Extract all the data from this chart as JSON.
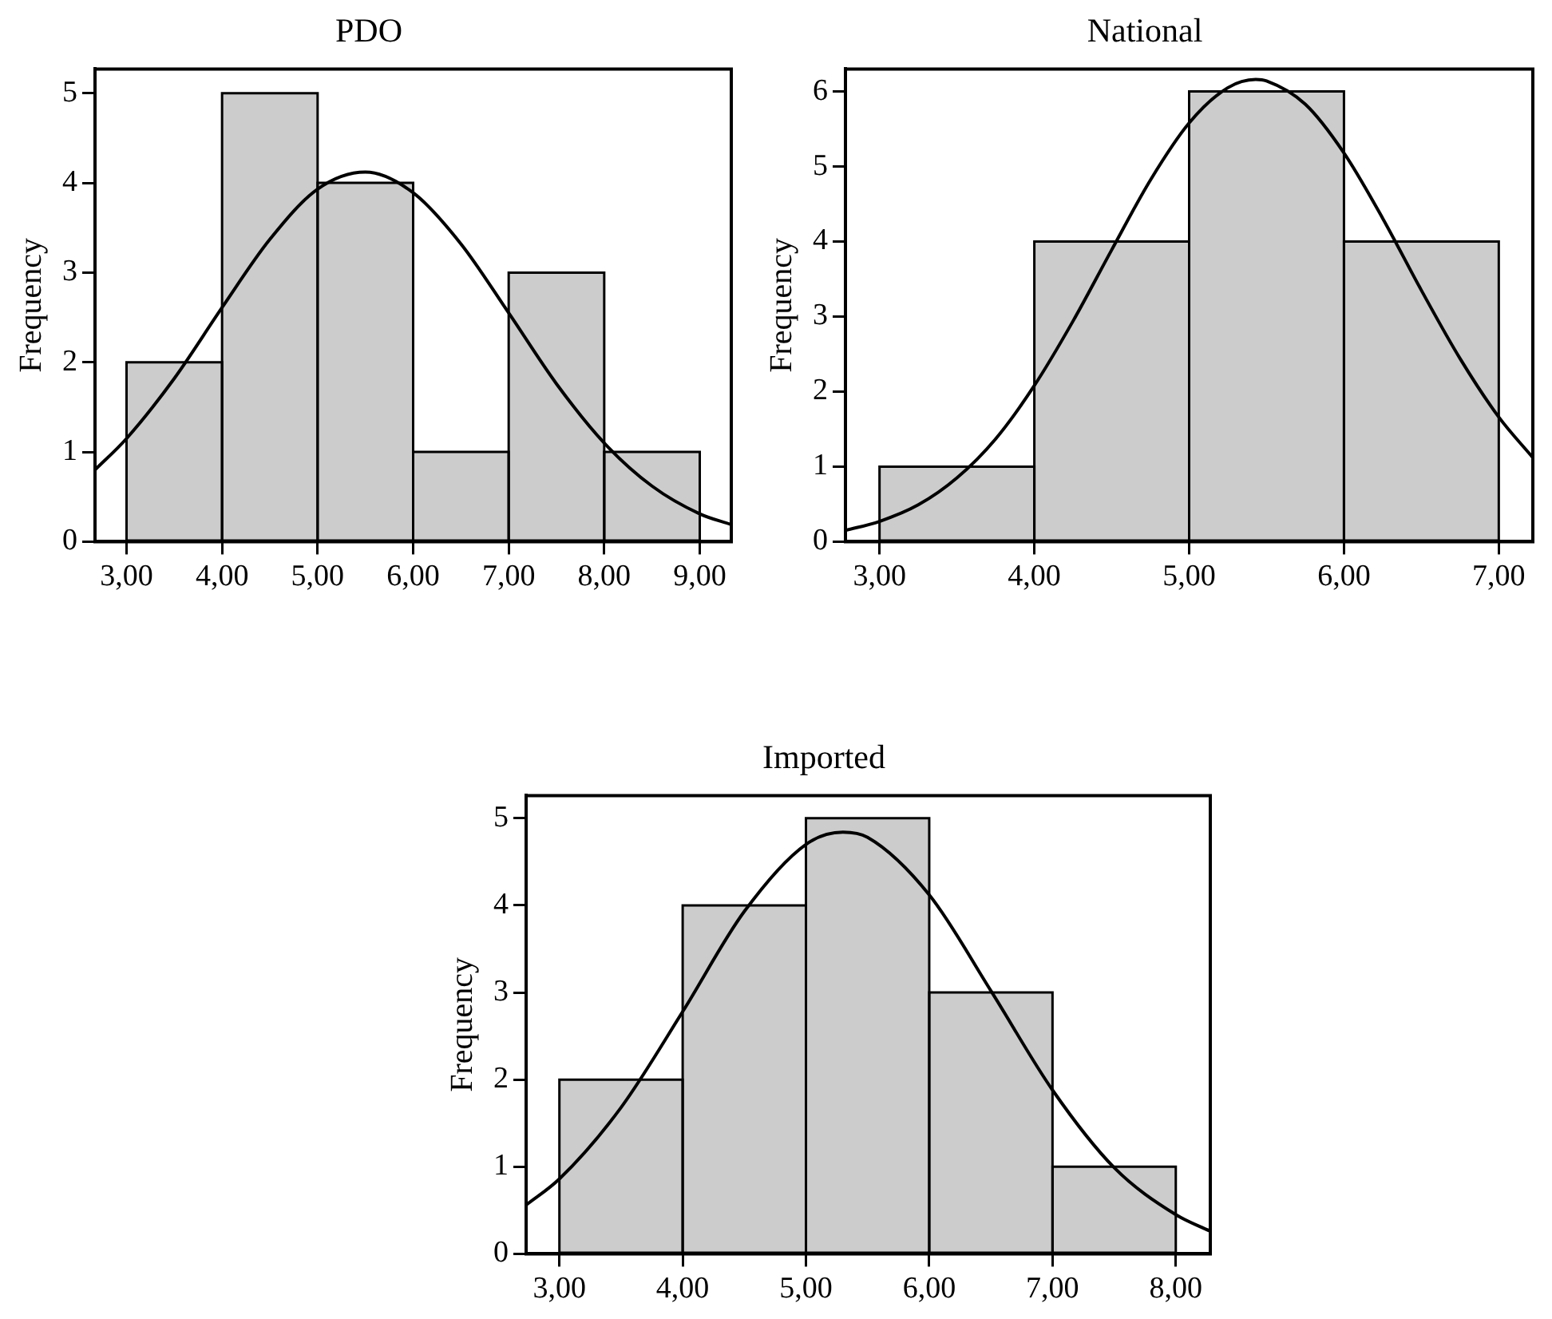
{
  "chart_data": [
    {
      "type": "histogram",
      "title": "PDO",
      "ylabel": "Frequency",
      "xlim": [
        2.67,
        9.33
      ],
      "ylim": [
        0,
        5.27
      ],
      "xticks": [
        {
          "value": 3,
          "label": "3,00"
        },
        {
          "value": 4,
          "label": "4,00"
        },
        {
          "value": 5,
          "label": "5,00"
        },
        {
          "value": 6,
          "label": "6,00"
        },
        {
          "value": 7,
          "label": "7,00"
        },
        {
          "value": 8,
          "label": "8,00"
        },
        {
          "value": 9,
          "label": "9,00"
        }
      ],
      "yticks": [
        0,
        1,
        2,
        3,
        4,
        5
      ],
      "grid": false,
      "legend": false,
      "color": "#cccccc",
      "bins": [
        3,
        4,
        5,
        6,
        7,
        8,
        9
      ],
      "values": [
        2,
        5,
        4,
        1,
        3,
        1
      ],
      "series": [
        {
          "type": "line",
          "color": "#000000",
          "marker": "none",
          "line_style": "solid",
          "x": [
            2.67,
            3,
            3.5,
            4,
            4.5,
            5,
            5.5,
            6,
            6.5,
            7,
            7.5,
            8,
            8.5,
            9,
            9.33
          ],
          "values": [
            0.8,
            1.15,
            1.82,
            2.61,
            3.37,
            3.93,
            4.12,
            3.89,
            3.32,
            2.55,
            1.76,
            1.1,
            0.62,
            0.31,
            0.19
          ]
        }
      ]
    },
    {
      "type": "histogram",
      "title": "National",
      "ylabel": "Frequency",
      "xlim": [
        2.78,
        7.22
      ],
      "ylim": [
        0,
        6.3
      ],
      "xticks": [
        {
          "value": 3,
          "label": "3,00"
        },
        {
          "value": 4,
          "label": "4,00"
        },
        {
          "value": 5,
          "label": "5,00"
        },
        {
          "value": 6,
          "label": "6,00"
        },
        {
          "value": 7,
          "label": "7,00"
        }
      ],
      "yticks": [
        0,
        1,
        2,
        3,
        4,
        5,
        6
      ],
      "grid": false,
      "legend": false,
      "color": "#cccccc",
      "bins": [
        3,
        4,
        5,
        6,
        7
      ],
      "values": [
        1,
        4,
        6,
        4
      ],
      "series": [
        {
          "type": "line",
          "color": "#000000",
          "marker": "none",
          "line_style": "solid",
          "x": [
            2.78,
            3,
            3.25,
            3.5,
            3.75,
            4,
            4.25,
            4.5,
            4.75,
            5,
            5.25,
            5.43,
            5.5,
            5.75,
            6,
            6.25,
            6.5,
            6.75,
            7,
            7.22
          ],
          "values": [
            0.15,
            0.27,
            0.49,
            0.85,
            1.37,
            2.08,
            2.94,
            3.89,
            4.82,
            5.58,
            6.05,
            6.16,
            6.14,
            5.83,
            5.18,
            4.31,
            3.35,
            2.44,
            1.66,
            1.12
          ]
        }
      ]
    },
    {
      "type": "histogram",
      "title": "Imported",
      "ylabel": "Frequency",
      "xlim": [
        2.73,
        8.28
      ],
      "ylim": [
        0,
        5.26
      ],
      "xticks": [
        {
          "value": 3,
          "label": "3,00"
        },
        {
          "value": 4,
          "label": "4,00"
        },
        {
          "value": 5,
          "label": "5,00"
        },
        {
          "value": 6,
          "label": "6,00"
        },
        {
          "value": 7,
          "label": "7,00"
        },
        {
          "value": 8,
          "label": "8,00"
        }
      ],
      "yticks": [
        0,
        1,
        2,
        3,
        4,
        5
      ],
      "grid": false,
      "legend": false,
      "color": "#cccccc",
      "bins": [
        3,
        4,
        5,
        6,
        7,
        8
      ],
      "values": [
        2,
        4,
        5,
        3,
        1
      ],
      "series": [
        {
          "type": "line",
          "color": "#000000",
          "marker": "none",
          "line_style": "solid",
          "x": [
            2.73,
            3,
            3.5,
            4,
            4.5,
            5,
            5.3,
            5.5,
            6,
            6.5,
            7,
            7.5,
            8,
            8.28
          ],
          "values": [
            0.56,
            0.86,
            1.68,
            2.78,
            3.93,
            4.7,
            4.84,
            4.78,
            4.12,
            3.02,
            1.88,
            0.99,
            0.45,
            0.26
          ]
        }
      ]
    }
  ]
}
